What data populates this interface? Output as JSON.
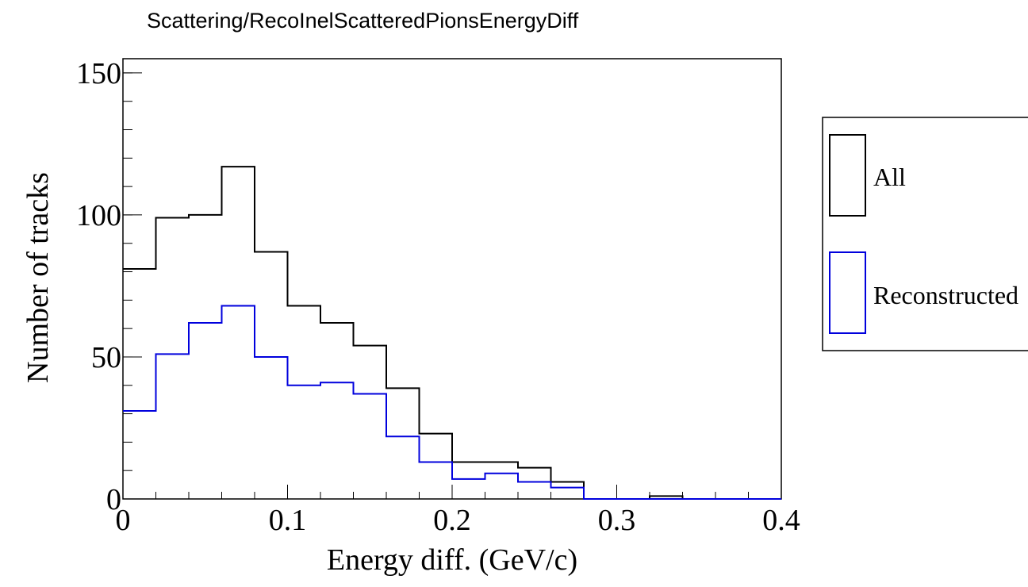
{
  "chart_data": {
    "type": "histogram",
    "title": "Scattering/RecoInelScatteredPionsEnergyDiff",
    "xlabel": "Energy diff. (GeV/c)",
    "ylabel": "Number of tracks",
    "xlim": [
      0,
      0.4
    ],
    "ylim": [
      0,
      155
    ],
    "bin_edges": [
      0,
      0.02,
      0.04,
      0.06,
      0.08,
      0.1,
      0.12,
      0.14,
      0.16,
      0.18,
      0.2,
      0.22,
      0.24,
      0.26,
      0.28,
      0.3,
      0.32,
      0.34,
      0.36,
      0.38,
      0.4
    ],
    "x_ticks": [
      {
        "value": 0,
        "label": "0"
      },
      {
        "value": 0.1,
        "label": "0.1"
      },
      {
        "value": 0.2,
        "label": "0.2"
      },
      {
        "value": 0.3,
        "label": "0.3"
      },
      {
        "value": 0.4,
        "label": "0.4"
      }
    ],
    "y_ticks": [
      {
        "value": 0,
        "label": "0"
      },
      {
        "value": 50,
        "label": "50"
      },
      {
        "value": 100,
        "label": "100"
      },
      {
        "value": 150,
        "label": "150"
      }
    ],
    "series": [
      {
        "name": "All",
        "color": "#000000",
        "values": [
          81,
          99,
          100,
          117,
          87,
          68,
          62,
          54,
          39,
          23,
          13,
          13,
          11,
          6,
          0,
          0,
          1,
          0,
          0,
          0
        ]
      },
      {
        "name": "Reconstructed",
        "color": "#0000dd",
        "values": [
          31,
          51,
          62,
          68,
          50,
          40,
          41,
          37,
          22,
          13,
          7,
          9,
          6,
          4,
          0,
          0,
          0,
          0,
          0,
          0
        ]
      }
    ],
    "legend_position": "right",
    "grid": false
  }
}
